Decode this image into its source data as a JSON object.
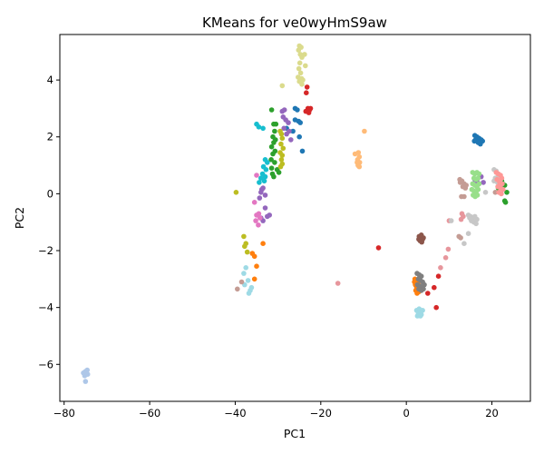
{
  "chart_data": {
    "type": "scatter",
    "title": "KMeans for ve0wyHmS9aw",
    "xlabel": "PC1",
    "ylabel": "PC2",
    "xlim": [
      -81,
      29
    ],
    "ylim": [
      -7.3,
      5.6
    ],
    "xticks": [
      -80,
      -60,
      -40,
      -20,
      0,
      20
    ],
    "yticks": [
      -6,
      -4,
      -2,
      0,
      2,
      4
    ],
    "grid": false,
    "legend": "none",
    "clusters": [
      {
        "color": "#aec7e8",
        "points": [
          [
            -75.5,
            -6.3
          ],
          [
            -75,
            -6.25
          ],
          [
            -74.5,
            -6.35
          ],
          [
            -75.2,
            -6.4
          ],
          [
            -74.8,
            -6.3
          ],
          [
            -75,
            -6.6
          ],
          [
            -74.6,
            -6.2
          ]
        ]
      },
      {
        "color": "#dbdb8d",
        "points": [
          [
            -25,
            5.2
          ],
          [
            -24.6,
            5.15
          ],
          [
            -25.2,
            5.05
          ],
          [
            -24.8,
            4.9
          ],
          [
            -24.4,
            4.8
          ],
          [
            -24.9,
            4.6
          ],
          [
            -25.1,
            4.4
          ],
          [
            -24.7,
            4.25
          ],
          [
            -25.3,
            4.1
          ],
          [
            -24.5,
            4.05
          ],
          [
            -24.2,
            4.0
          ],
          [
            -25.0,
            3.95
          ],
          [
            -24.4,
            3.85
          ],
          [
            -23.8,
            4.9
          ],
          [
            -23.6,
            4.5
          ],
          [
            -29,
            3.8
          ]
        ]
      },
      {
        "color": "#d62728",
        "points": [
          [
            -23.2,
            3.75
          ],
          [
            -23.4,
            3.55
          ],
          [
            -23.0,
            3.0
          ],
          [
            -22.6,
            2.95
          ],
          [
            -22.8,
            2.85
          ],
          [
            -22.4,
            3.0
          ],
          [
            -23.5,
            2.9
          ],
          [
            -6.5,
            -1.9
          ],
          [
            7,
            -4.0
          ],
          [
            6.5,
            -3.3
          ],
          [
            5,
            -3.5
          ],
          [
            7.5,
            -2.9
          ]
        ]
      },
      {
        "color": "#1f77b4",
        "points": [
          [
            -26,
            3.0
          ],
          [
            -25.5,
            2.95
          ],
          [
            -26,
            2.6
          ],
          [
            -25.2,
            2.55
          ],
          [
            -24.8,
            2.5
          ],
          [
            -26.5,
            2.2
          ],
          [
            -25,
            2.0
          ],
          [
            -24.3,
            1.5
          ],
          [
            -28,
            2.3
          ],
          [
            16,
            2.05
          ],
          [
            16.5,
            2.0
          ],
          [
            17,
            1.95
          ],
          [
            17.5,
            1.9
          ],
          [
            16.2,
            1.9
          ],
          [
            16.8,
            1.8
          ],
          [
            17.3,
            1.75
          ],
          [
            15.9,
            1.85
          ],
          [
            17.8,
            1.85
          ]
        ]
      },
      {
        "color": "#2ca02c",
        "points": [
          [
            -31.5,
            2.95
          ],
          [
            -31,
            2.45
          ],
          [
            -30.5,
            2.45
          ],
          [
            -30.8,
            2.2
          ],
          [
            -31.2,
            2.0
          ],
          [
            -30.6,
            1.9
          ],
          [
            -31.0,
            1.8
          ],
          [
            -31.5,
            1.65
          ],
          [
            -30.7,
            1.5
          ],
          [
            -31.2,
            1.4
          ],
          [
            -31.6,
            1.2
          ],
          [
            -30.8,
            1.1
          ],
          [
            -31.5,
            0.9
          ],
          [
            -30.2,
            0.85
          ],
          [
            -31.3,
            0.7
          ],
          [
            -29.8,
            0.75
          ],
          [
            -31.0,
            0.6
          ],
          [
            22,
            0.4
          ],
          [
            22.5,
            0.35
          ],
          [
            23,
            0.3
          ],
          [
            23.5,
            0.05
          ],
          [
            23,
            -0.25
          ],
          [
            23.2,
            -0.3
          ],
          [
            21.5,
            0.2
          ],
          [
            22.3,
            0.45
          ]
        ]
      },
      {
        "color": "#9467bd",
        "points": [
          [
            -29,
            2.9
          ],
          [
            -28.5,
            2.95
          ],
          [
            -28.8,
            2.7
          ],
          [
            -28.2,
            2.6
          ],
          [
            -27.6,
            2.5
          ],
          [
            -28.6,
            2.3
          ],
          [
            -28.0,
            2.1
          ],
          [
            -27.4,
            2.2
          ],
          [
            -27,
            1.9
          ],
          [
            -33.8,
            0.15
          ],
          [
            -33.5,
            0.2
          ],
          [
            -34,
            0.05
          ],
          [
            -33,
            -0.05
          ],
          [
            -34.3,
            -0.15
          ],
          [
            -33,
            -0.5
          ],
          [
            -32.5,
            -0.8
          ],
          [
            -32,
            -0.75
          ],
          [
            -33.5,
            -0.95
          ],
          [
            -34,
            -0.85
          ],
          [
            16,
            0.5
          ],
          [
            16.5,
            0.45
          ],
          [
            17.5,
            0.6
          ],
          [
            18,
            0.4
          ],
          [
            17,
            0.35
          ]
        ]
      },
      {
        "color": "#17becf",
        "points": [
          [
            -35,
            2.45
          ],
          [
            -34.5,
            2.35
          ],
          [
            -33.5,
            2.3
          ],
          [
            -33,
            1.2
          ],
          [
            -32.5,
            1.1
          ],
          [
            -33.4,
            0.95
          ],
          [
            -32.8,
            0.85
          ],
          [
            -33.6,
            0.7
          ],
          [
            -33.0,
            0.6
          ],
          [
            -34,
            0.55
          ],
          [
            -33.2,
            0.45
          ],
          [
            -34.4,
            0.4
          ]
        ]
      },
      {
        "color": "#bcbd22",
        "points": [
          [
            -29.5,
            2.2
          ],
          [
            -29.2,
            2.1
          ],
          [
            -29,
            1.95
          ],
          [
            -29.3,
            1.75
          ],
          [
            -28.8,
            1.6
          ],
          [
            -29.5,
            1.45
          ],
          [
            -29,
            1.35
          ],
          [
            -29.2,
            1.2
          ],
          [
            -29.0,
            1.05
          ],
          [
            -29.4,
            0.95
          ],
          [
            -39.8,
            0.05
          ],
          [
            -38,
            -1.5
          ],
          [
            -37.5,
            -1.75
          ],
          [
            -37.8,
            -1.85
          ],
          [
            -37.2,
            -2.05
          ]
        ]
      },
      {
        "color": "#ffbb78",
        "points": [
          [
            -12,
            1.4
          ],
          [
            -11.2,
            1.45
          ],
          [
            -11,
            1.3
          ],
          [
            -11.4,
            1.2
          ],
          [
            -10.9,
            1.1
          ],
          [
            -11.3,
            1.0
          ],
          [
            -11,
            0.95
          ],
          [
            -9.8,
            2.2
          ],
          [
            -11.5,
            1.1
          ]
        ]
      },
      {
        "color": "#e377c2",
        "points": [
          [
            -35,
            0.65
          ],
          [
            -35.5,
            -0.3
          ],
          [
            -35,
            -0.75
          ],
          [
            -34.5,
            -0.7
          ],
          [
            -35.2,
            -0.95
          ],
          [
            -34.6,
            -1.1
          ],
          [
            -34.2,
            -0.85
          ]
        ]
      },
      {
        "color": "#ff7f0e",
        "points": [
          [
            -33.5,
            -1.75
          ],
          [
            -36,
            -2.1
          ],
          [
            -35.5,
            -2.2
          ],
          [
            -35,
            -2.55
          ],
          [
            -35.5,
            -3.0
          ],
          [
            2,
            -3.0
          ],
          [
            2.3,
            -3.05
          ],
          [
            2.6,
            -3.1
          ],
          [
            2.1,
            -3.2
          ],
          [
            2.8,
            -3.2
          ],
          [
            2.4,
            -3.3
          ],
          [
            2.2,
            -3.4
          ],
          [
            2.9,
            -3.45
          ],
          [
            2.5,
            -3.5
          ],
          [
            3.0,
            -3.0
          ],
          [
            1.9,
            -3.1
          ]
        ]
      },
      {
        "color": "#9edae5",
        "points": [
          [
            -38,
            -2.8
          ],
          [
            -37.5,
            -2.6
          ],
          [
            -37,
            -3.05
          ],
          [
            -37.8,
            -3.2
          ],
          [
            -36.5,
            -3.4
          ],
          [
            -36.8,
            -3.5
          ],
          [
            -36.2,
            -3.3
          ],
          [
            2.4,
            -4.1
          ],
          [
            2.8,
            -4.2
          ],
          [
            3.2,
            -4.15
          ],
          [
            3.5,
            -4.25
          ],
          [
            2.6,
            -4.3
          ],
          [
            3.0,
            -4.05
          ],
          [
            3.8,
            -4.1
          ],
          [
            3.3,
            -4.3
          ]
        ]
      },
      {
        "color": "#c49c94",
        "points": [
          [
            -39.5,
            -3.35
          ],
          [
            -38.5,
            -3.1
          ],
          [
            12.5,
            0.5
          ],
          [
            13,
            0.45
          ],
          [
            13.5,
            0.35
          ],
          [
            13.8,
            0.2
          ],
          [
            12.9,
            -0.1
          ],
          [
            13.5,
            -0.1
          ],
          [
            14,
            0.3
          ],
          [
            12.6,
            0.4
          ],
          [
            13.2,
            0.25
          ],
          [
            20.8,
            0.05
          ],
          [
            12.7,
            -1.55
          ],
          [
            12.3,
            -1.5
          ]
        ]
      },
      {
        "color": "#e7969c",
        "points": [
          [
            -16,
            -3.15
          ],
          [
            10,
            -0.95
          ],
          [
            9.8,
            -1.95
          ],
          [
            9.2,
            -2.25
          ],
          [
            8,
            -2.6
          ],
          [
            13,
            -0.7
          ],
          [
            13.3,
            -0.8
          ],
          [
            12.8,
            -0.9
          ]
        ]
      },
      {
        "color": "#8c564b",
        "points": [
          [
            3.0,
            -1.5
          ],
          [
            3.4,
            -1.55
          ],
          [
            3.8,
            -1.6
          ],
          [
            3.2,
            -1.65
          ],
          [
            3.6,
            -1.7
          ],
          [
            4.0,
            -1.55
          ],
          [
            3.5,
            -1.45
          ],
          [
            2.9,
            -1.6
          ]
        ]
      },
      {
        "color": "#7f7f7f",
        "points": [
          [
            2.5,
            -2.8
          ],
          [
            3.0,
            -2.85
          ],
          [
            3.5,
            -2.9
          ],
          [
            2.8,
            -3.0
          ],
          [
            3.3,
            -3.05
          ],
          [
            3.8,
            -3.1
          ],
          [
            2.6,
            -3.2
          ],
          [
            3.2,
            -3.25
          ],
          [
            3.7,
            -3.3
          ],
          [
            4.2,
            -3.2
          ],
          [
            2.9,
            -3.35
          ],
          [
            3.5,
            -3.4
          ],
          [
            4.0,
            -3.35
          ]
        ]
      },
      {
        "color": "#c7c7c7",
        "points": [
          [
            20.5,
            0.85
          ],
          [
            21,
            0.8
          ],
          [
            21.5,
            0.65
          ],
          [
            20.8,
            0.55
          ],
          [
            21.3,
            0.4
          ],
          [
            22,
            0.5
          ],
          [
            21.7,
            0.3
          ],
          [
            20.5,
            0.45
          ],
          [
            18.5,
            0.05
          ],
          [
            14.5,
            -0.75
          ],
          [
            15,
            -0.8
          ],
          [
            15.5,
            -0.85
          ],
          [
            16,
            -0.8
          ],
          [
            16.5,
            -0.9
          ],
          [
            15.2,
            -0.95
          ],
          [
            15.8,
            -1.0
          ],
          [
            16.3,
            -1.05
          ],
          [
            14.8,
            -0.85
          ],
          [
            14.5,
            -1.4
          ],
          [
            13.5,
            -1.75
          ],
          [
            10.5,
            -0.95
          ]
        ]
      },
      {
        "color": "#98df8a",
        "points": [
          [
            15.5,
            0.75
          ],
          [
            16,
            0.7
          ],
          [
            16.5,
            0.75
          ],
          [
            17,
            0.7
          ],
          [
            15.8,
            0.55
          ],
          [
            16.3,
            0.5
          ],
          [
            16.8,
            0.55
          ],
          [
            15.5,
            0.35
          ],
          [
            16,
            0.3
          ],
          [
            16.5,
            0.25
          ],
          [
            17,
            0.35
          ],
          [
            15.3,
            0.15
          ],
          [
            15.8,
            0.1
          ],
          [
            16.3,
            0.05
          ],
          [
            16.8,
            0.15
          ],
          [
            15.6,
            -0.05
          ],
          [
            16.1,
            -0.1
          ],
          [
            16.6,
            -0.05
          ]
        ]
      },
      {
        "color": "#ff9896",
        "points": [
          [
            21,
            0.75
          ],
          [
            21.5,
            0.7
          ],
          [
            22,
            0.65
          ],
          [
            22.3,
            0.55
          ],
          [
            21.2,
            0.5
          ],
          [
            21.8,
            0.4
          ],
          [
            22.4,
            0.35
          ],
          [
            21.4,
            0.25
          ],
          [
            22,
            0.2
          ],
          [
            22.6,
            0.15
          ],
          [
            21.6,
            0.05
          ],
          [
            22.2,
            0.0
          ]
        ]
      }
    ]
  }
}
